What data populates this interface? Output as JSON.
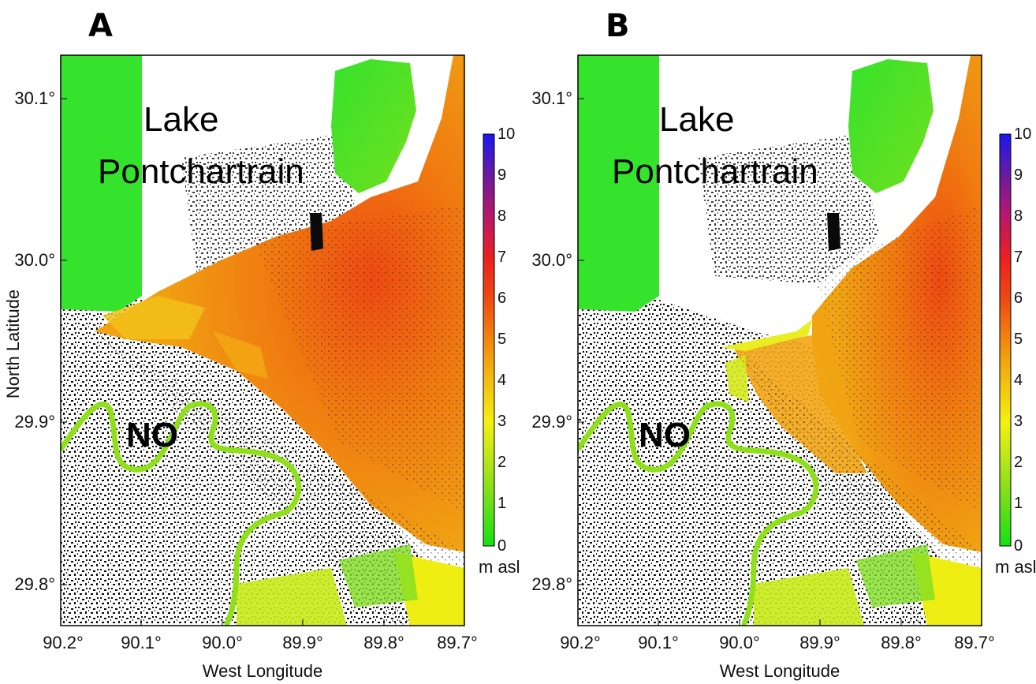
{
  "figure": {
    "panels": [
      {
        "label": "A",
        "xlabel": "West Longitude",
        "ylabel": "North Latitude",
        "xticks": [
          "90.2°",
          "90.1°",
          "90.0°",
          "89.9°",
          "89.8°",
          "89.7°"
        ],
        "yticks": [
          "30.1°",
          "30.0°",
          "29.9°",
          "29.8°"
        ],
        "places": [
          "Lake",
          "Pontchartrain",
          "NO"
        ],
        "colorbar": {
          "ticks": [
            "10",
            "9",
            "8",
            "7",
            "6",
            "5",
            "4",
            "3",
            "2",
            "1",
            "0"
          ],
          "unit": "m asl"
        }
      },
      {
        "label": "B",
        "xlabel": "West Longitude",
        "ylabel": "",
        "xticks": [
          "90.2°",
          "90.1°",
          "90.0°",
          "89.9°",
          "89.8°",
          "89.7°"
        ],
        "yticks": [
          "30.1°",
          "30.0°",
          "29.9°",
          "29.8°"
        ],
        "places": [
          "Lake",
          "Pontchartrain",
          "NO"
        ],
        "colorbar": {
          "ticks": [
            "10",
            "9",
            "8",
            "7",
            "6",
            "5",
            "4",
            "3",
            "2",
            "1",
            "0"
          ],
          "unit": "m asl"
        }
      }
    ],
    "colors": {
      "lake_green": "#35e22c",
      "orange": "#f2860f",
      "red": "#ee3b12",
      "yellow": "#f2f213",
      "urban_black": "#0a0a0a"
    }
  }
}
